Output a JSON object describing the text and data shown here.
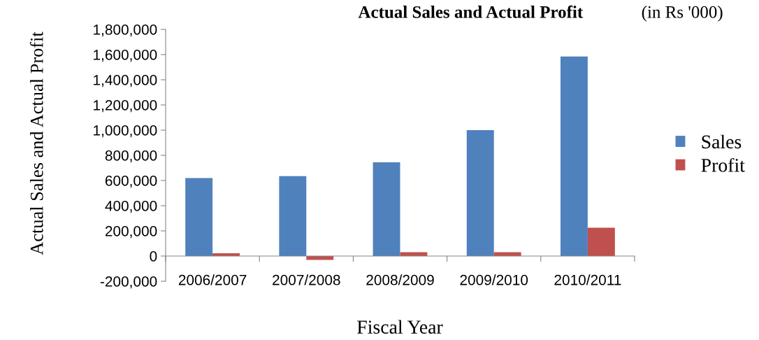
{
  "chart_data": {
    "type": "bar",
    "title": "Actual Sales and Actual Profit",
    "annotations": [
      "(in Rs '000)"
    ],
    "xlabel": "Fiscal Year",
    "ylabel": "Actual Sales and Actual Profit",
    "categories": [
      "2006/2007",
      "2007/2008",
      "2008/2009",
      "2009/2010",
      "2010/2011"
    ],
    "series": [
      {
        "name": "Sales",
        "color": "#4f81bd",
        "values": [
          620000,
          635000,
          745000,
          1000000,
          1585000
        ]
      },
      {
        "name": "Profit",
        "color": "#c0504d",
        "values": [
          22000,
          -30000,
          30000,
          30000,
          225000
        ]
      }
    ],
    "ylim": [
      -200000,
      1800000
    ],
    "yticks": [
      {
        "value": -200000,
        "label": "-200,000"
      },
      0,
      {
        "value": 200000,
        "label": "200,000"
      },
      {
        "value": 400000,
        "label": "400,000"
      },
      {
        "value": 600000,
        "label": "600,000"
      },
      {
        "value": 800000,
        "label": "800,000"
      },
      {
        "value": 1000000,
        "label": "1,000,000"
      },
      {
        "value": 1200000,
        "label": "1,200,000"
      },
      {
        "value": 1400000,
        "label": "1,400,000"
      },
      {
        "value": 1600000,
        "label": "1,600,000"
      },
      {
        "value": 1800000,
        "label": "1,800,000"
      }
    ],
    "grid": false,
    "legend": "right"
  }
}
